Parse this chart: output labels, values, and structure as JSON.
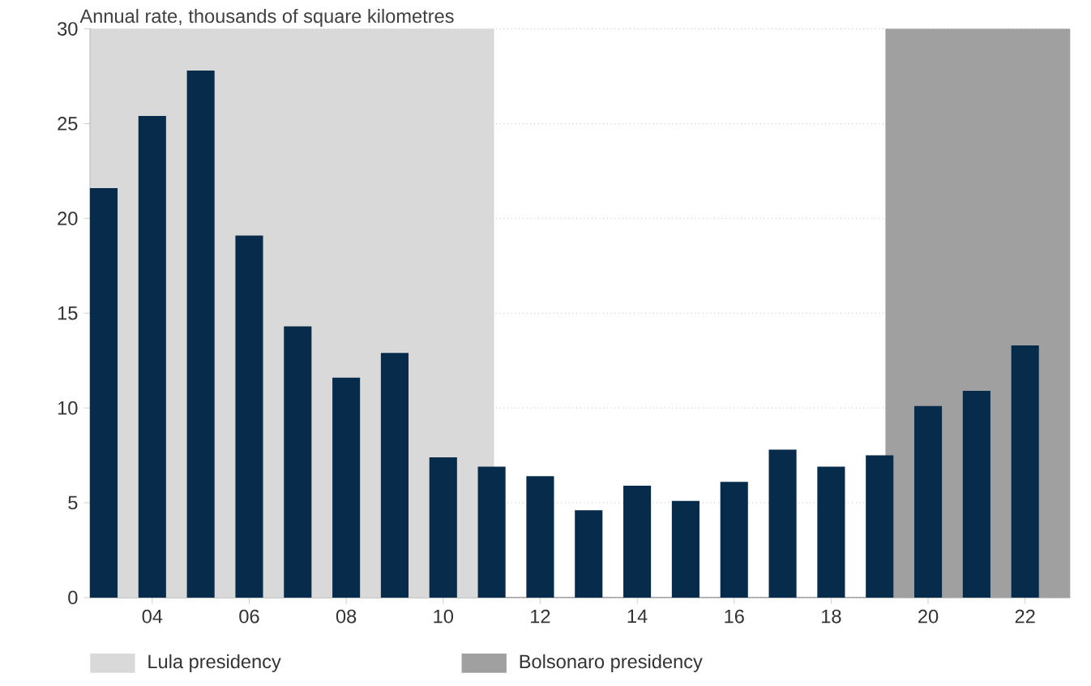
{
  "chart_data": {
    "type": "bar",
    "title": "Annual rate, thousands of square kilometres",
    "x": [
      2003,
      2004,
      2005,
      2006,
      2007,
      2008,
      2009,
      2010,
      2011,
      2012,
      2013,
      2014,
      2015,
      2016,
      2017,
      2018,
      2019,
      2020,
      2021,
      2022
    ],
    "values": [
      21.6,
      25.4,
      27.8,
      19.1,
      14.3,
      11.6,
      12.9,
      7.4,
      6.9,
      6.4,
      4.6,
      5.9,
      5.1,
      6.1,
      7.8,
      6.9,
      7.5,
      10.1,
      10.9,
      13.3
    ],
    "color": "#062b4b",
    "xlim": [
      2002.72,
      2022.93
    ],
    "xticks": [
      {
        "value": 2004,
        "label": "04"
      },
      {
        "value": 2006,
        "label": "06"
      },
      {
        "value": 2008,
        "label": "08"
      },
      {
        "value": 2010,
        "label": "10"
      },
      {
        "value": 2012,
        "label": "12"
      },
      {
        "value": 2014,
        "label": "14"
      },
      {
        "value": 2016,
        "label": "16"
      },
      {
        "value": 2018,
        "label": "18"
      },
      {
        "value": 2020,
        "label": "20"
      },
      {
        "value": 2022,
        "label": "22"
      }
    ],
    "ylim": [
      0,
      30
    ],
    "yticks": [
      0,
      5,
      10,
      15,
      20,
      25,
      30
    ],
    "grid": "y",
    "legend": "bottom left",
    "bands": [
      {
        "axis": "x",
        "from": 2002.72,
        "to": 2011.05,
        "label": "Lula presidency",
        "color": "#d9d9d9"
      },
      {
        "axis": "x",
        "from": 2019.12,
        "to": 2022.93,
        "label": "Bolsonaro presidency",
        "color": "#a0a0a0"
      }
    ]
  }
}
